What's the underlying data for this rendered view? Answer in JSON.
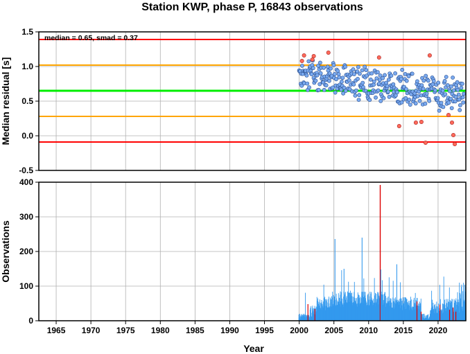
{
  "title": "Station KWP, phase P, 16843 observations",
  "annotation": "median = 0.65, smad = 0.37",
  "colors": {
    "median_line": "#00ee00",
    "smad_lines": "#ffa500",
    "outer_lines": "#ff0000",
    "point_fill": "#7aaaf0",
    "outlier_fill": "#ff6a5a",
    "bars": "#3399ee",
    "outlier_bars": "#dd0000",
    "grid": "#b0b0b0"
  },
  "chart_data": [
    {
      "type": "scatter",
      "ylabel": "Median residual [s]",
      "xlim": [
        1962.5,
        2024
      ],
      "ylim": [
        -0.5,
        1.5
      ],
      "yticks": [
        "-0.5",
        "0.0",
        "0.5",
        "1.0",
        "1.5"
      ],
      "grid": true,
      "reference_lines": [
        {
          "name": "median",
          "y": 0.65
        },
        {
          "name": "median + smad",
          "y": 1.02
        },
        {
          "name": "median - smad",
          "y": 0.28
        },
        {
          "name": "upper limit",
          "y": 1.39
        },
        {
          "name": "lower limit",
          "y": -0.09
        }
      ],
      "outliers": [
        {
          "x": 2000.4,
          "y": 1.08
        },
        {
          "x": 2000.7,
          "y": 1.16
        },
        {
          "x": 2001.9,
          "y": 1.1
        },
        {
          "x": 2002.1,
          "y": 1.15
        },
        {
          "x": 2004.2,
          "y": 1.2
        },
        {
          "x": 2011.5,
          "y": 1.13
        },
        {
          "x": 2014.4,
          "y": 0.14
        },
        {
          "x": 2016.8,
          "y": 0.19
        },
        {
          "x": 2017.6,
          "y": 0.2
        },
        {
          "x": 2018.8,
          "y": 1.16
        },
        {
          "x": 2018.2,
          "y": -0.1
        },
        {
          "x": 2021.5,
          "y": 0.3
        },
        {
          "x": 2022.0,
          "y": 0.19
        },
        {
          "x": 2022.2,
          "y": 0.01
        },
        {
          "x": 2022.4,
          "y": -0.12
        }
      ]
    },
    {
      "type": "bar",
      "xlabel": "Year",
      "ylabel": "Observations",
      "xlim": [
        1962.5,
        2024
      ],
      "ylim": [
        0,
        400
      ],
      "xticks": [
        "1965",
        "1970",
        "1975",
        "1980",
        "1985",
        "1990",
        "1995",
        "2000",
        "2005",
        "2010",
        "2015",
        "2020"
      ],
      "yticks": [
        "0",
        "100",
        "200",
        "300",
        "400"
      ],
      "grid": true,
      "peaks": [
        {
          "x": 2005.1,
          "y": 236
        },
        {
          "x": 2009.0,
          "y": 240
        },
        {
          "x": 2006.4,
          "y": 150
        },
        {
          "x": 2011.6,
          "y": 392
        },
        {
          "x": 2011.7,
          "y": 148
        },
        {
          "x": 2014.0,
          "y": 163
        }
      ]
    }
  ]
}
